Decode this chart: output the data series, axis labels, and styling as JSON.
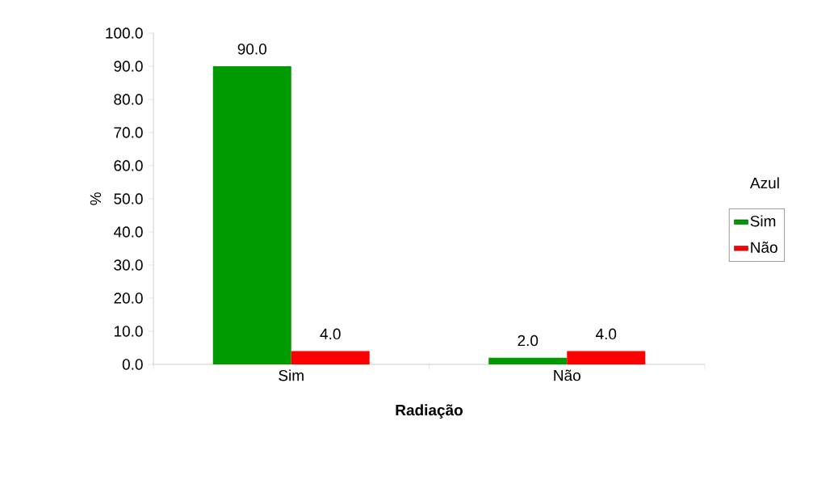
{
  "chart_data": {
    "type": "bar",
    "xlabel": "Radiação",
    "ylabel": "%",
    "legend_title": "Azul",
    "categories": [
      "Sim",
      "Não"
    ],
    "series": [
      {
        "name": "Sim",
        "color": "#009900",
        "values": [
          90,
          2
        ],
        "value_labels": [
          "90.0",
          "2.0"
        ]
      },
      {
        "name": "Não",
        "color": "#ff0000",
        "values": [
          4,
          4
        ],
        "value_labels": [
          "4.0",
          "4.0"
        ]
      }
    ],
    "ylim": [
      0,
      100
    ],
    "yticks": [
      {
        "value": 0,
        "label": "0.0"
      },
      {
        "value": 10,
        "label": "10.0"
      },
      {
        "value": 20,
        "label": "20.0"
      },
      {
        "value": 30,
        "label": "30.0"
      },
      {
        "value": 40,
        "label": "40.0"
      },
      {
        "value": 50,
        "label": "50.0"
      },
      {
        "value": 60,
        "label": "60.0"
      },
      {
        "value": 70,
        "label": "70.0"
      },
      {
        "value": 80,
        "label": "80.0"
      },
      {
        "value": 90,
        "label": "90.0"
      },
      {
        "value": 100,
        "label": "100.0"
      }
    ],
    "legend": "right"
  }
}
